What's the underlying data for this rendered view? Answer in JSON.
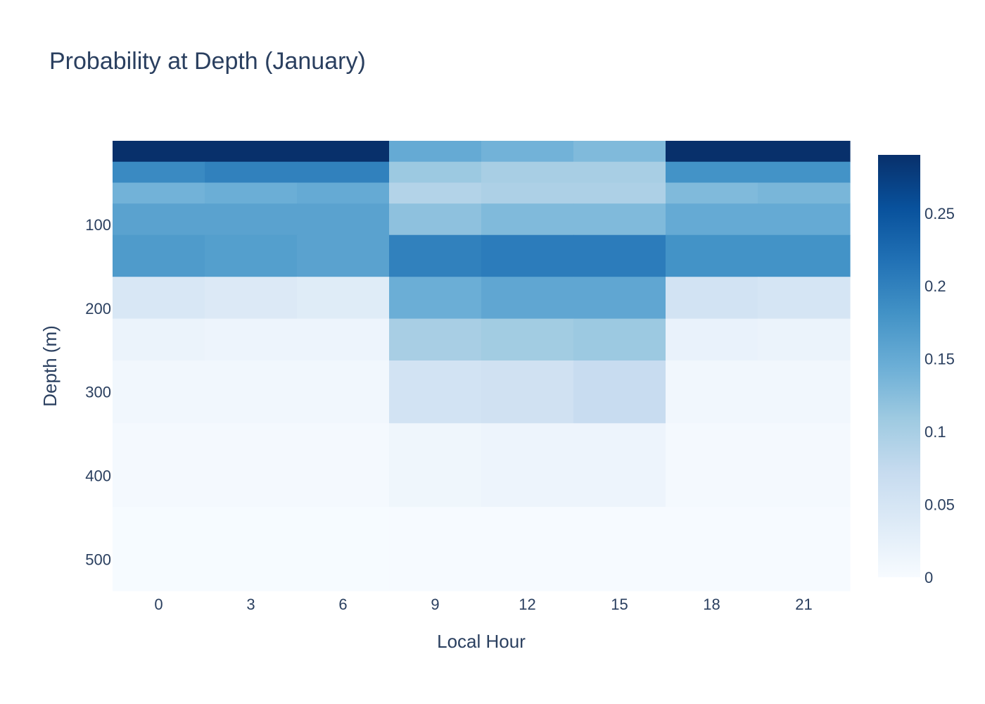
{
  "chart_data": {
    "type": "heatmap",
    "title": "Probability at Depth (January)",
    "xlabel": "Local Hour",
    "ylabel": "Depth (m)",
    "x": [
      0,
      3,
      6,
      9,
      12,
      15,
      18,
      21
    ],
    "y_bins": [
      [
        0,
        25
      ],
      [
        25,
        50
      ],
      [
        50,
        75
      ],
      [
        75,
        112.5
      ],
      [
        112.5,
        162.5
      ],
      [
        162.5,
        212.5
      ],
      [
        212.5,
        262.5
      ],
      [
        262.5,
        337.5
      ],
      [
        337.5,
        437.5
      ],
      [
        437.5,
        537.5
      ]
    ],
    "yticks": [
      100,
      200,
      300,
      400,
      500
    ],
    "ylim": [
      0,
      537.5
    ],
    "z": [
      [
        0.29,
        0.29,
        0.29,
        0.15,
        0.14,
        0.13,
        0.29,
        0.29
      ],
      [
        0.19,
        0.2,
        0.2,
        0.11,
        0.1,
        0.1,
        0.18,
        0.18
      ],
      [
        0.14,
        0.145,
        0.15,
        0.09,
        0.095,
        0.095,
        0.13,
        0.135
      ],
      [
        0.16,
        0.16,
        0.16,
        0.12,
        0.13,
        0.13,
        0.15,
        0.15
      ],
      [
        0.17,
        0.165,
        0.16,
        0.2,
        0.205,
        0.205,
        0.18,
        0.18
      ],
      [
        0.045,
        0.04,
        0.035,
        0.145,
        0.155,
        0.155,
        0.055,
        0.05
      ],
      [
        0.018,
        0.015,
        0.015,
        0.1,
        0.105,
        0.11,
        0.02,
        0.018
      ],
      [
        0.008,
        0.008,
        0.008,
        0.055,
        0.058,
        0.07,
        0.008,
        0.008
      ],
      [
        0.004,
        0.004,
        0.004,
        0.012,
        0.015,
        0.015,
        0.004,
        0.004
      ],
      [
        0.001,
        0.001,
        0.001,
        0.002,
        0.002,
        0.002,
        0.002,
        0.002
      ]
    ],
    "colorscale": "Blues",
    "zmin": 0,
    "zmax": 0.29,
    "colorbar_ticks": [
      "0",
      "0.05",
      "0.1",
      "0.15",
      "0.2",
      "0.25"
    ]
  }
}
